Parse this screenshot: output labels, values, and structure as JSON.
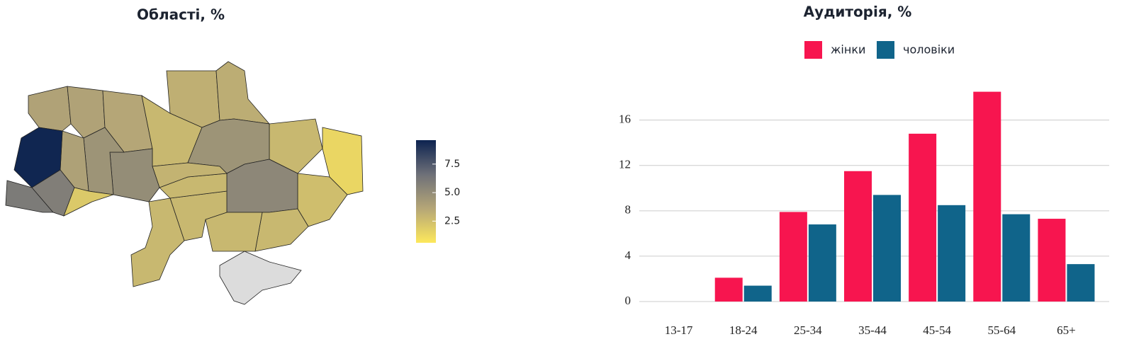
{
  "chart_data": [
    {
      "type": "choropleth",
      "title": "Області, %",
      "values": [
        3.8,
        3.8,
        3.6,
        2.8,
        3.2,
        3.3,
        2.8,
        1.4,
        2.5,
        4.6,
        5.3,
        2.8,
        2.8,
        null,
        2.8,
        2.8,
        2.8,
        3.0,
        5.0,
        4.6,
        3.9,
        9.5,
        6.0,
        5.8,
        2.0
      ],
      "colorscale": [
        "#fde85c",
        "#b5a677",
        "#6e7078",
        "#0d2350"
      ],
      "clim": [
        0.6,
        9.6
      ],
      "cticks": [
        2.5,
        {
          "value": 5,
          "label": "5.0"
        },
        7.5
      ],
      "missing_color": "#dcdcdc"
    },
    {
      "type": "bar",
      "title": "Аудиторія, %",
      "categories": [
        "13-17",
        "18-24",
        "25-34",
        "35-44",
        "45-54",
        "55-64",
        "65+"
      ],
      "series": [
        {
          "name": "жінки",
          "color": "#f7154f",
          "values": [
            0,
            2.1,
            7.9,
            11.5,
            14.8,
            18.5,
            7.3
          ]
        },
        {
          "name": "чоловіки",
          "color": "#10648a",
          "values": [
            0,
            1.4,
            6.8,
            9.4,
            8.5,
            7.7,
            3.3
          ]
        }
      ],
      "ylim": [
        0,
        18.6
      ],
      "yticks": [
        0,
        4,
        8,
        12,
        16
      ],
      "grid": true
    }
  ]
}
